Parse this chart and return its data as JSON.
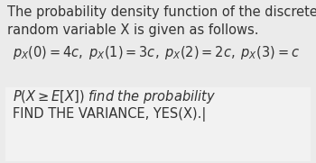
{
  "bg_color": "#ebebeb",
  "inner_box_color": "#f2f2f2",
  "text_lines_top": [
    "The probability density function of the discrete",
    "random variable X is given as follows."
  ],
  "formula_line": "$p_X(0) = 4c,\\; p_X(1) = 3c,\\; p_X(2) = 2c,\\; p_X(3) = c$",
  "inner_line1": "$P(X \\geq E[X])$ find the probability",
  "inner_line2": "FIND THE VARIANCE, YES(X).|",
  "font_size_top": 10.5,
  "font_size_formula": 10.5,
  "font_size_inner": 10.5
}
